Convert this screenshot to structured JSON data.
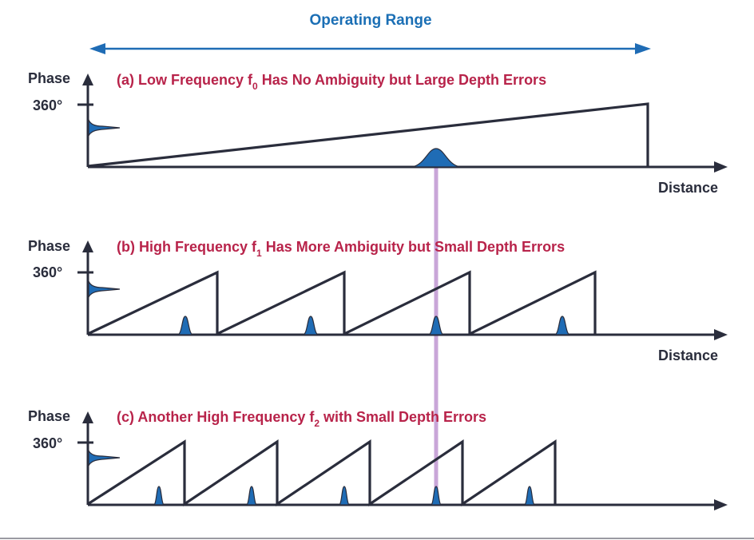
{
  "header": {
    "operating_range_label": "Operating Range"
  },
  "axes": {
    "y_label": "Phase",
    "y_max_label": "360°",
    "x_label": "Distance"
  },
  "panels": [
    {
      "id": "a",
      "title_before": "(a) Low Frequency f",
      "subscript": "0",
      "title_after": " Has No Ambiguity but Large Depth Errors",
      "wraps": 1
    },
    {
      "id": "b",
      "title_before": "(b) High Frequency f",
      "subscript": "1",
      "title_after": " Has More Ambiguity but Small Depth Errors",
      "wraps": 4
    },
    {
      "id": "c",
      "title_before": "(c) Another High Frequency f",
      "subscript": "2",
      "title_after": " with Small Depth Errors",
      "wraps": 5
    }
  ],
  "colors": {
    "range_arrow": "#1f6cb5",
    "panel_title": "#b8234a",
    "waveform": "#2a2d3c",
    "peak_fill": "#1f6cb5",
    "alignment_line": "#c9a6d8"
  }
}
